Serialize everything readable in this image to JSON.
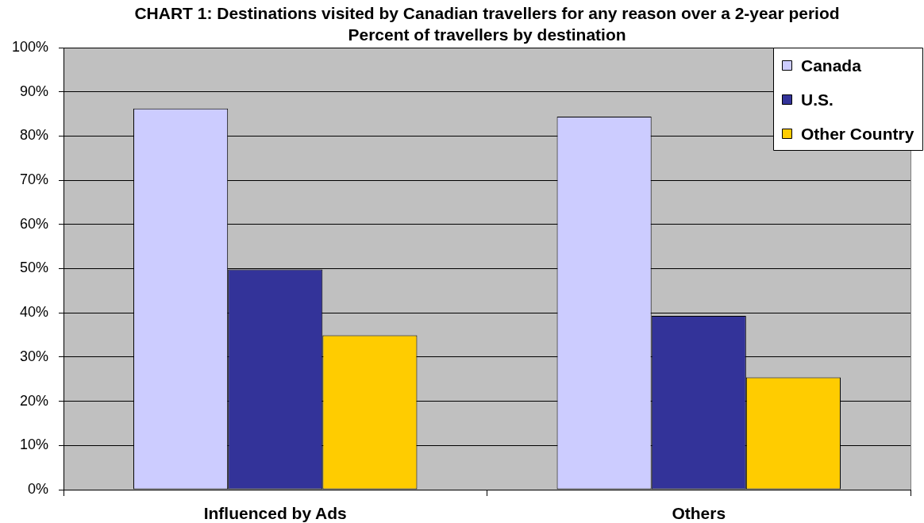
{
  "chart_data": {
    "type": "bar",
    "title": "CHART 1: Destinations visited by Canadian travellers for any reason over a 2-year period",
    "subtitle": "Percent of travellers by destination",
    "categories": [
      "Influenced by Ads",
      "Others"
    ],
    "series": [
      {
        "name": "Canada",
        "color": "#ccccff",
        "values": [
          86.2,
          84.4
        ]
      },
      {
        "name": "U.S.",
        "color": "#333399",
        "values": [
          49.8,
          39.3
        ]
      },
      {
        "name": "Other Country",
        "color": "#ffcc00",
        "values": [
          34.9,
          25.4
        ]
      }
    ],
    "ylim": [
      0,
      100
    ],
    "yticks": [
      {
        "value": 0,
        "label": "0%"
      },
      {
        "value": 10,
        "label": "10%"
      },
      {
        "value": 20,
        "label": "20%"
      },
      {
        "value": 30,
        "label": "30%"
      },
      {
        "value": 40,
        "label": "40%"
      },
      {
        "value": 50,
        "label": "50%"
      },
      {
        "value": 60,
        "label": "60%"
      },
      {
        "value": 70,
        "label": "70%"
      },
      {
        "value": 80,
        "label": "80%"
      },
      {
        "value": 90,
        "label": "90%"
      },
      {
        "value": 100,
        "label": "100%"
      }
    ],
    "grid": "y",
    "legend": "top right"
  }
}
